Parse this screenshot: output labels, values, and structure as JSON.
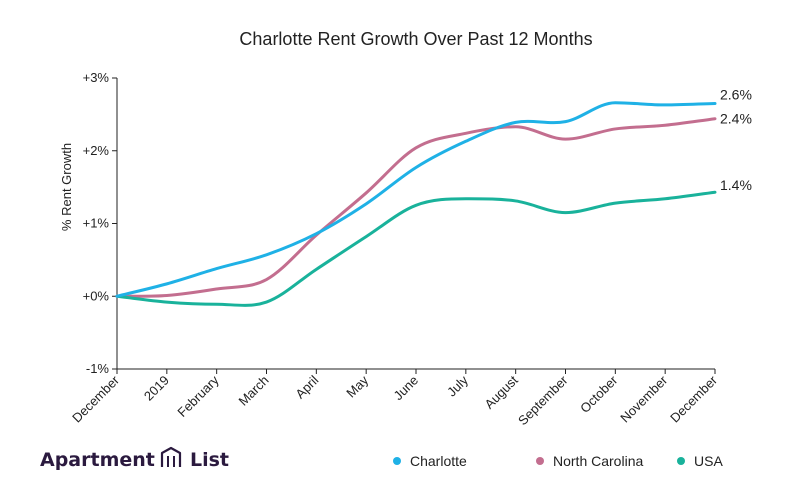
{
  "brand": {
    "name_left": "Apartment",
    "name_right": "List"
  },
  "colors": {
    "axis": "#222222",
    "brand": "#2b1a3f"
  },
  "chart_data": {
    "type": "line",
    "title": "Charlotte Rent Growth Over Past 12 Months",
    "xlabel": "",
    "ylabel": "% Rent Growth",
    "categories": [
      "December",
      "2019",
      "February",
      "March",
      "April",
      "May",
      "June",
      "July",
      "August",
      "September",
      "October",
      "November",
      "December"
    ],
    "yticks": [
      -1,
      0,
      1,
      2,
      3
    ],
    "ytick_labels": [
      "-1%",
      "+0%",
      "+1%",
      "+2%",
      "+3%"
    ],
    "ylim": [
      -1,
      3
    ],
    "grid": false,
    "legend_position": "bottom-right",
    "series": [
      {
        "name": "Charlotte",
        "color": "#1fb1e6",
        "values": [
          0,
          0.17,
          0.38,
          0.57,
          0.86,
          1.27,
          1.77,
          2.13,
          2.39,
          2.4,
          2.66,
          2.63,
          2.65
        ],
        "end_label": "2.6%"
      },
      {
        "name": "North Carolina",
        "color": "#c36e8f",
        "values": [
          0,
          0.01,
          0.1,
          0.23,
          0.84,
          1.42,
          2.04,
          2.24,
          2.33,
          2.16,
          2.3,
          2.35,
          2.44
        ],
        "end_label": "2.4%"
      },
      {
        "name": "USA",
        "color": "#19b29b",
        "values": [
          0,
          -0.08,
          -0.11,
          -0.08,
          0.37,
          0.82,
          1.25,
          1.34,
          1.31,
          1.15,
          1.28,
          1.34,
          1.43
        ],
        "end_label": "1.4%"
      }
    ]
  }
}
